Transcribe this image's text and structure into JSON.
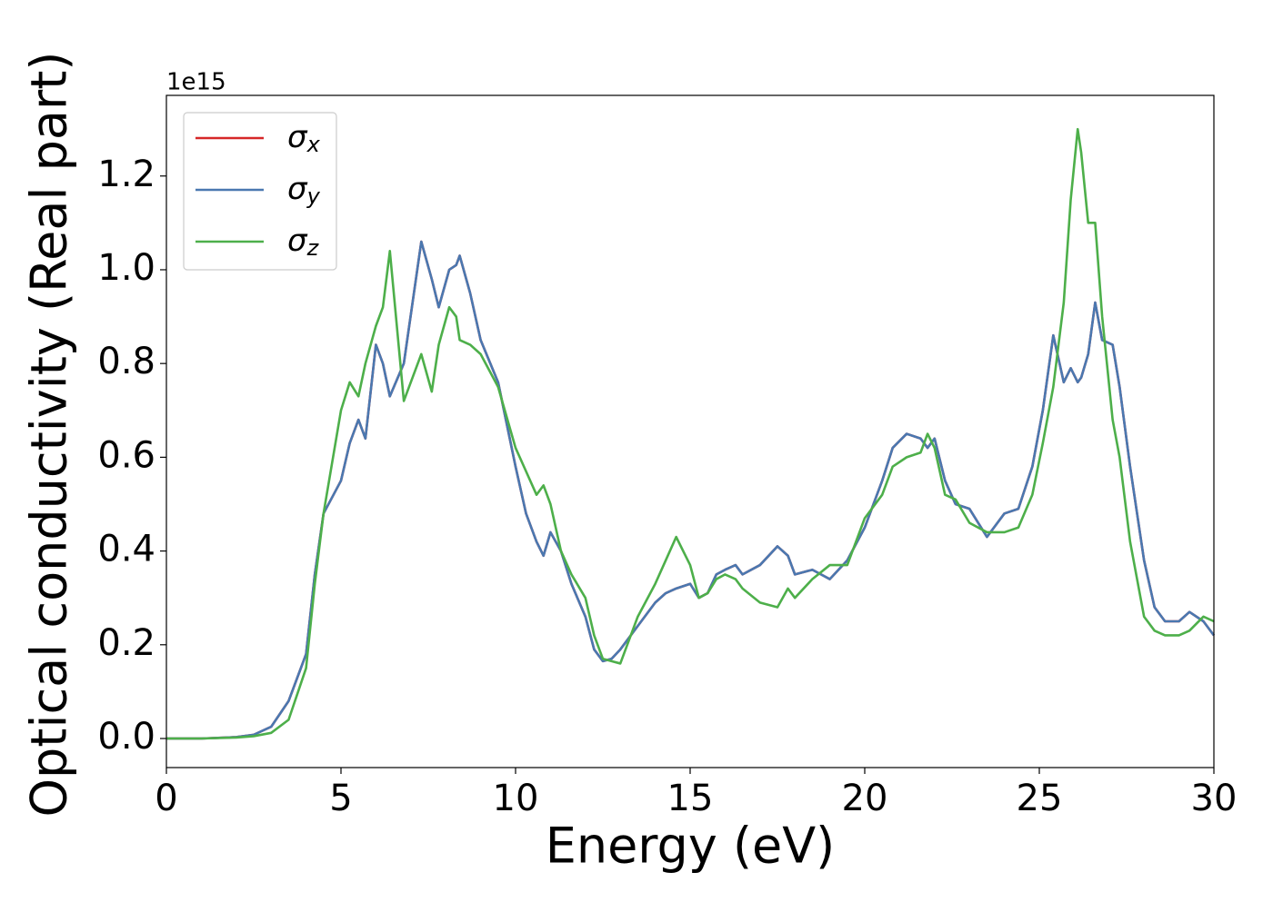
{
  "chart_data": {
    "type": "line",
    "xlabel": "Energy (eV)",
    "ylabel": "Optical conductivity (Real part)",
    "y_offset_label": "1e15",
    "x": [
      0,
      1,
      2,
      2.5,
      3,
      3.5,
      4,
      4.25,
      4.5,
      5,
      5.25,
      5.5,
      5.7,
      6,
      6.2,
      6.4,
      6.8,
      7.3,
      7.6,
      7.8,
      8.1,
      8.3,
      8.4,
      8.7,
      9,
      9.5,
      10,
      10.3,
      10.6,
      10.8,
      11,
      11.3,
      11.6,
      12,
      12.25,
      12.5,
      12.75,
      13,
      13.5,
      14,
      14.3,
      14.6,
      15,
      15.25,
      15.5,
      15.75,
      16,
      16.3,
      16.5,
      17,
      17.5,
      17.8,
      18,
      18.5,
      19,
      19.5,
      20,
      20.5,
      20.8,
      21.2,
      21.6,
      21.8,
      22,
      22.3,
      22.6,
      23,
      23.5,
      24,
      24.4,
      24.8,
      25.1,
      25.4,
      25.7,
      25.9,
      26.1,
      26.2,
      26.4,
      26.6,
      26.8,
      27.1,
      27.3,
      27.6,
      28,
      28.3,
      28.6,
      29,
      29.3,
      29.7,
      30
    ],
    "series": [
      {
        "name": "σx",
        "color": "#d62728",
        "values": [
          0,
          0,
          0.003,
          0.008,
          0.025,
          0.08,
          0.18,
          0.35,
          0.48,
          0.55,
          0.63,
          0.68,
          0.64,
          0.84,
          0.8,
          0.73,
          0.8,
          1.06,
          0.98,
          0.92,
          1.0,
          1.01,
          1.03,
          0.95,
          0.85,
          0.76,
          0.58,
          0.48,
          0.42,
          0.39,
          0.44,
          0.4,
          0.33,
          0.26,
          0.19,
          0.165,
          0.17,
          0.19,
          0.24,
          0.29,
          0.31,
          0.32,
          0.33,
          0.3,
          0.31,
          0.35,
          0.36,
          0.37,
          0.35,
          0.37,
          0.41,
          0.39,
          0.35,
          0.36,
          0.34,
          0.38,
          0.45,
          0.55,
          0.62,
          0.65,
          0.64,
          0.62,
          0.64,
          0.55,
          0.5,
          0.49,
          0.43,
          0.48,
          0.49,
          0.58,
          0.7,
          0.86,
          0.76,
          0.79,
          0.76,
          0.77,
          0.82,
          0.93,
          0.85,
          0.84,
          0.75,
          0.58,
          0.38,
          0.28,
          0.25,
          0.25,
          0.27,
          0.25,
          0.22
        ]
      },
      {
        "name": "σy",
        "color": "#4a78b0",
        "values": [
          0,
          0,
          0.003,
          0.008,
          0.025,
          0.08,
          0.18,
          0.35,
          0.48,
          0.55,
          0.63,
          0.68,
          0.64,
          0.84,
          0.8,
          0.73,
          0.8,
          1.06,
          0.98,
          0.92,
          1.0,
          1.01,
          1.03,
          0.95,
          0.85,
          0.76,
          0.58,
          0.48,
          0.42,
          0.39,
          0.44,
          0.4,
          0.33,
          0.26,
          0.19,
          0.165,
          0.17,
          0.19,
          0.24,
          0.29,
          0.31,
          0.32,
          0.33,
          0.3,
          0.31,
          0.35,
          0.36,
          0.37,
          0.35,
          0.37,
          0.41,
          0.39,
          0.35,
          0.36,
          0.34,
          0.38,
          0.45,
          0.55,
          0.62,
          0.65,
          0.64,
          0.62,
          0.64,
          0.55,
          0.5,
          0.49,
          0.43,
          0.48,
          0.49,
          0.58,
          0.7,
          0.86,
          0.76,
          0.79,
          0.76,
          0.77,
          0.82,
          0.93,
          0.85,
          0.84,
          0.75,
          0.58,
          0.38,
          0.28,
          0.25,
          0.25,
          0.27,
          0.25,
          0.22
        ]
      },
      {
        "name": "σz",
        "color": "#4daf4a",
        "values": [
          0,
          0,
          0.002,
          0.005,
          0.012,
          0.04,
          0.15,
          0.33,
          0.48,
          0.7,
          0.76,
          0.73,
          0.8,
          0.88,
          0.92,
          1.04,
          0.72,
          0.82,
          0.74,
          0.84,
          0.92,
          0.9,
          0.85,
          0.84,
          0.82,
          0.75,
          0.62,
          0.57,
          0.52,
          0.54,
          0.5,
          0.4,
          0.35,
          0.3,
          0.22,
          0.17,
          0.165,
          0.16,
          0.26,
          0.33,
          0.38,
          0.43,
          0.37,
          0.3,
          0.31,
          0.34,
          0.35,
          0.34,
          0.32,
          0.29,
          0.28,
          0.32,
          0.3,
          0.34,
          0.37,
          0.37,
          0.47,
          0.52,
          0.58,
          0.6,
          0.61,
          0.65,
          0.62,
          0.52,
          0.51,
          0.46,
          0.44,
          0.44,
          0.45,
          0.52,
          0.63,
          0.75,
          0.93,
          1.15,
          1.3,
          1.25,
          1.1,
          1.1,
          0.9,
          0.68,
          0.6,
          0.42,
          0.26,
          0.23,
          0.22,
          0.22,
          0.23,
          0.26,
          0.25
        ]
      }
    ],
    "xlim": [
      0,
      30
    ],
    "xticks": [
      0,
      5,
      10,
      15,
      20,
      25,
      30
    ],
    "ylim": [
      -0.062,
      1.372
    ],
    "yticks": [
      {
        "value": 0,
        "label": "0.0"
      },
      0.2,
      0.4,
      0.6,
      0.8,
      {
        "value": 1,
        "label": "1.0"
      },
      1.2
    ],
    "grid": false,
    "legend": "upper left"
  }
}
